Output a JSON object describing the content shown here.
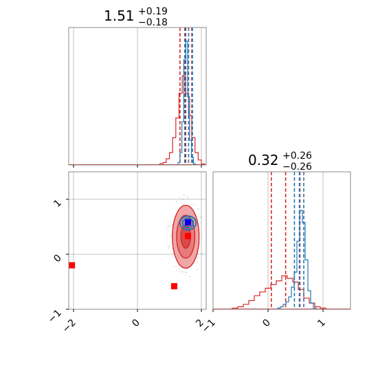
{
  "chart_data": {
    "type": "corner",
    "params": [
      {
        "title": {
          "value": "1.51",
          "plus": "+0.19",
          "minus": "−0.18"
        },
        "range": [
          -2.15,
          2.15
        ],
        "ticks": [
          {
            "v": -2,
            "label": "−2"
          },
          {
            "v": 0,
            "label": "0"
          },
          {
            "v": 2,
            "label": "2"
          }
        ]
      },
      {
        "title": {
          "value": "0.32",
          "plus": "+0.26",
          "minus": "−0.26"
        },
        "range": [
          -1,
          1.5
        ],
        "ticks": [
          {
            "v": -1,
            "label": "−1"
          },
          {
            "v": 0,
            "label": "0"
          },
          {
            "v": 1,
            "label": "1"
          }
        ]
      }
    ],
    "grid": true,
    "series": [
      {
        "color": "#d62728",
        "hist1": {
          "x": [
            0.75,
            0.85,
            0.95,
            1.05,
            1.15,
            1.25,
            1.35,
            1.45,
            1.55,
            1.65,
            1.75,
            1.85,
            1.95,
            2.05
          ],
          "y": [
            0.01,
            0.02,
            0.05,
            0.1,
            0.22,
            0.38,
            0.58,
            0.72,
            0.58,
            0.4,
            0.22,
            0.1,
            0.04,
            0.01
          ]
        },
        "quantiles1": [
          1.33,
          1.51,
          1.7
        ],
        "hist2": {
          "x": [
            -0.6,
            -0.5,
            -0.4,
            -0.3,
            -0.2,
            -0.1,
            0.0,
            0.1,
            0.2,
            0.3,
            0.4,
            0.5,
            0.6,
            0.7,
            0.8,
            0.9,
            1.0
          ],
          "y": [
            0.01,
            0.02,
            0.04,
            0.07,
            0.11,
            0.14,
            0.17,
            0.2,
            0.23,
            0.27,
            0.25,
            0.22,
            0.16,
            0.09,
            0.05,
            0.02,
            0.01
          ]
        },
        "quantiles2": [
          0.06,
          0.32,
          0.58
        ],
        "ellipse": {
          "cx": 1.51,
          "cy": 0.32,
          "sx": 0.19,
          "sy": 0.26
        }
      },
      {
        "color": "#1f77b4",
        "hist1": {
          "x": [
            1.3,
            1.36,
            1.42,
            1.48,
            1.54,
            1.6,
            1.66,
            1.72,
            1.78
          ],
          "y": [
            0.02,
            0.1,
            0.35,
            0.85,
            1.0,
            0.55,
            0.2,
            0.06,
            0.01
          ]
        },
        "quantiles1": [
          1.48,
          1.6,
          1.72
        ],
        "hist2": {
          "x": [
            0.2,
            0.25,
            0.3,
            0.35,
            0.4,
            0.45,
            0.5,
            0.55,
            0.6,
            0.65,
            0.7,
            0.75,
            0.8,
            0.85
          ],
          "y": [
            0.01,
            0.02,
            0.04,
            0.06,
            0.1,
            0.18,
            0.3,
            0.55,
            0.8,
            0.7,
            0.4,
            0.15,
            0.05,
            0.01
          ]
        },
        "quantiles2": [
          0.48,
          0.57,
          0.65
        ],
        "ellipse": {
          "cx": 1.58,
          "cy": 0.57,
          "sx": 0.14,
          "sy": 0.07
        }
      }
    ],
    "markers": [
      {
        "x": -2.05,
        "y": -0.2,
        "color": "#ff0000"
      },
      {
        "x": 1.15,
        "y": -0.58,
        "color": "#ff0000"
      },
      {
        "x": 1.58,
        "y": 0.33,
        "color": "#ff0000"
      },
      {
        "x": 1.58,
        "y": 0.58,
        "color": "#0000ff"
      }
    ]
  }
}
